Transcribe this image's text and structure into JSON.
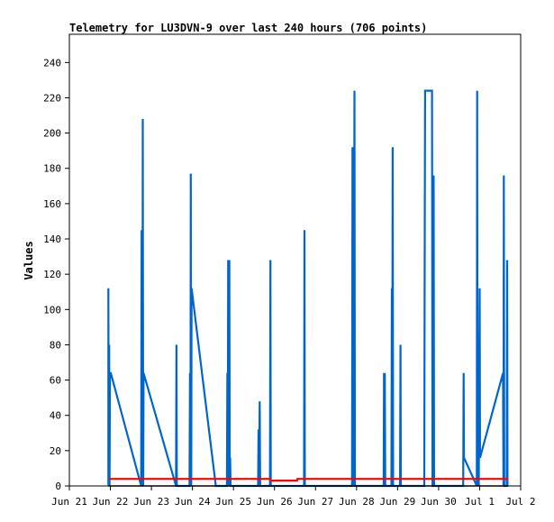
{
  "chart_data": {
    "type": "line",
    "title": "Telemetry for LU3DVN-9 over last 240 hours (706 points)",
    "xlabel": "",
    "ylabel": "Values",
    "x_range_days": [
      21,
      31
    ],
    "x_ticks": [
      {
        "day": 21,
        "label": "Jun 21"
      },
      {
        "day": 22,
        "label": "Jun 22"
      },
      {
        "day": 23,
        "label": "Jun 23"
      },
      {
        "day": 24,
        "label": "Jun 24"
      },
      {
        "day": 25,
        "label": "Jun 25"
      },
      {
        "day": 26,
        "label": "Jun 26"
      },
      {
        "day": 27,
        "label": "Jun 27"
      },
      {
        "day": 28,
        "label": "Jun 28"
      },
      {
        "day": 29,
        "label": "Jun 29"
      },
      {
        "day": 30,
        "label": "Jun 30"
      },
      {
        "day": 31,
        "label": "Jul 1"
      },
      {
        "day": 32,
        "label": "Jul 2"
      }
    ],
    "ylim": [
      0,
      256
    ],
    "y_ticks": [
      0,
      20,
      40,
      60,
      80,
      100,
      120,
      140,
      160,
      180,
      200,
      220,
      240
    ],
    "grid": false,
    "series": [
      {
        "color": "#0066cc",
        "points": [
          [
            21.95,
            0
          ],
          [
            21.95,
            112
          ],
          [
            21.96,
            0
          ],
          [
            21.97,
            80
          ],
          [
            21.98,
            0
          ],
          [
            21.99,
            64
          ],
          [
            22.01,
            64
          ],
          [
            22.75,
            0
          ],
          [
            22.76,
            145
          ],
          [
            22.78,
            0
          ],
          [
            22.79,
            208
          ],
          [
            22.8,
            0
          ],
          [
            22.81,
            64
          ],
          [
            23.6,
            0
          ],
          [
            23.61,
            80
          ],
          [
            23.62,
            0
          ],
          [
            23.93,
            0
          ],
          [
            23.94,
            64
          ],
          [
            23.95,
            0
          ],
          [
            23.96,
            177
          ],
          [
            23.97,
            0
          ],
          [
            23.98,
            112
          ],
          [
            24.57,
            0
          ],
          [
            24.84,
            0
          ],
          [
            24.85,
            64
          ],
          [
            24.86,
            0
          ],
          [
            24.87,
            128
          ],
          [
            24.89,
            0
          ],
          [
            24.9,
            128
          ],
          [
            24.91,
            0
          ],
          [
            24.92,
            16
          ],
          [
            24.93,
            0
          ],
          [
            25.6,
            0
          ],
          [
            25.61,
            32
          ],
          [
            25.62,
            0
          ],
          [
            25.64,
            48
          ],
          [
            25.65,
            0
          ],
          [
            25.89,
            0
          ],
          [
            25.9,
            128
          ],
          [
            25.91,
            0
          ],
          [
            26.72,
            0
          ],
          [
            26.73,
            145
          ],
          [
            26.74,
            0
          ],
          [
            27.89,
            0
          ],
          [
            27.9,
            192
          ],
          [
            27.91,
            0
          ],
          [
            27.92,
            112
          ],
          [
            27.93,
            0
          ],
          [
            27.95,
            224
          ],
          [
            27.96,
            0
          ],
          [
            28.66,
            0
          ],
          [
            28.67,
            64
          ],
          [
            28.68,
            0
          ],
          [
            28.69,
            64
          ],
          [
            28.7,
            0
          ],
          [
            28.85,
            0
          ],
          [
            28.86,
            112
          ],
          [
            28.87,
            0
          ],
          [
            28.88,
            192
          ],
          [
            28.89,
            0
          ],
          [
            29.06,
            0
          ],
          [
            29.07,
            80
          ],
          [
            29.08,
            0
          ],
          [
            29.65,
            0
          ],
          [
            29.66,
            112
          ],
          [
            29.67,
            224
          ],
          [
            29.84,
            224
          ],
          [
            29.85,
            0
          ],
          [
            29.87,
            0
          ],
          [
            29.88,
            176
          ],
          [
            29.89,
            0
          ],
          [
            30.6,
            0
          ],
          [
            30.61,
            64
          ],
          [
            30.62,
            16
          ],
          [
            30.93,
            0
          ],
          [
            30.94,
            224
          ],
          [
            30.95,
            0
          ],
          [
            30.97,
            56
          ],
          [
            30.98,
            0
          ],
          [
            31.0,
            112
          ],
          [
            31.01,
            16
          ],
          [
            31.57,
            64
          ],
          [
            31.58,
            0
          ],
          [
            31.59,
            176
          ],
          [
            31.6,
            0
          ],
          [
            31.66,
            0
          ],
          [
            31.67,
            128
          ],
          [
            31.68,
            0
          ]
        ]
      },
      {
        "color": "#ff0000",
        "points": [
          [
            21.97,
            4
          ],
          [
            25.89,
            4
          ],
          [
            25.9,
            3
          ],
          [
            26.55,
            3
          ],
          [
            26.56,
            4
          ],
          [
            31.7,
            4
          ]
        ]
      },
      {
        "color": "#000000",
        "points": [
          [
            21.95,
            0
          ],
          [
            31.7,
            0
          ]
        ]
      }
    ]
  }
}
